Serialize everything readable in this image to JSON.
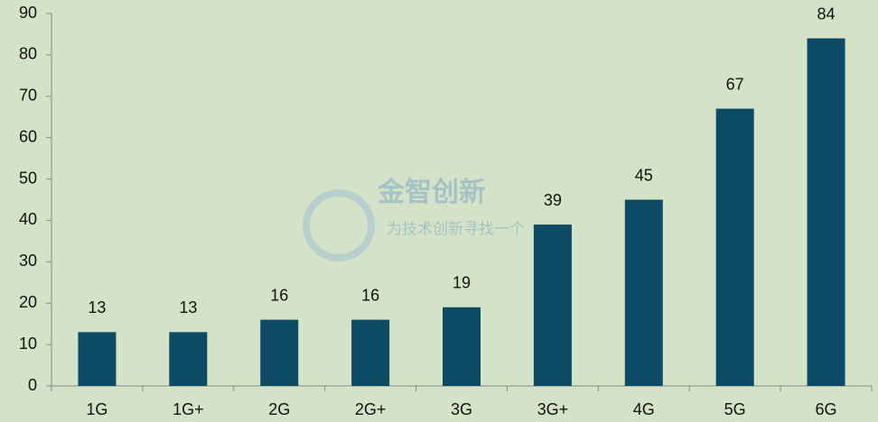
{
  "chart_data": {
    "type": "bar",
    "categories": [
      "1G",
      "1G+",
      "2G",
      "2G+",
      "3G",
      "3G+",
      "4G",
      "5G",
      "6G"
    ],
    "values": [
      13,
      13,
      16,
      16,
      19,
      39,
      45,
      67,
      84
    ],
    "color": "#0d4a63",
    "ylim": [
      0,
      90
    ],
    "yticks": [
      0,
      10,
      20,
      30,
      40,
      50,
      60,
      70,
      80,
      90
    ],
    "grid": false,
    "watermark": [
      "金智创新",
      "为技术创新寻找一个"
    ]
  }
}
